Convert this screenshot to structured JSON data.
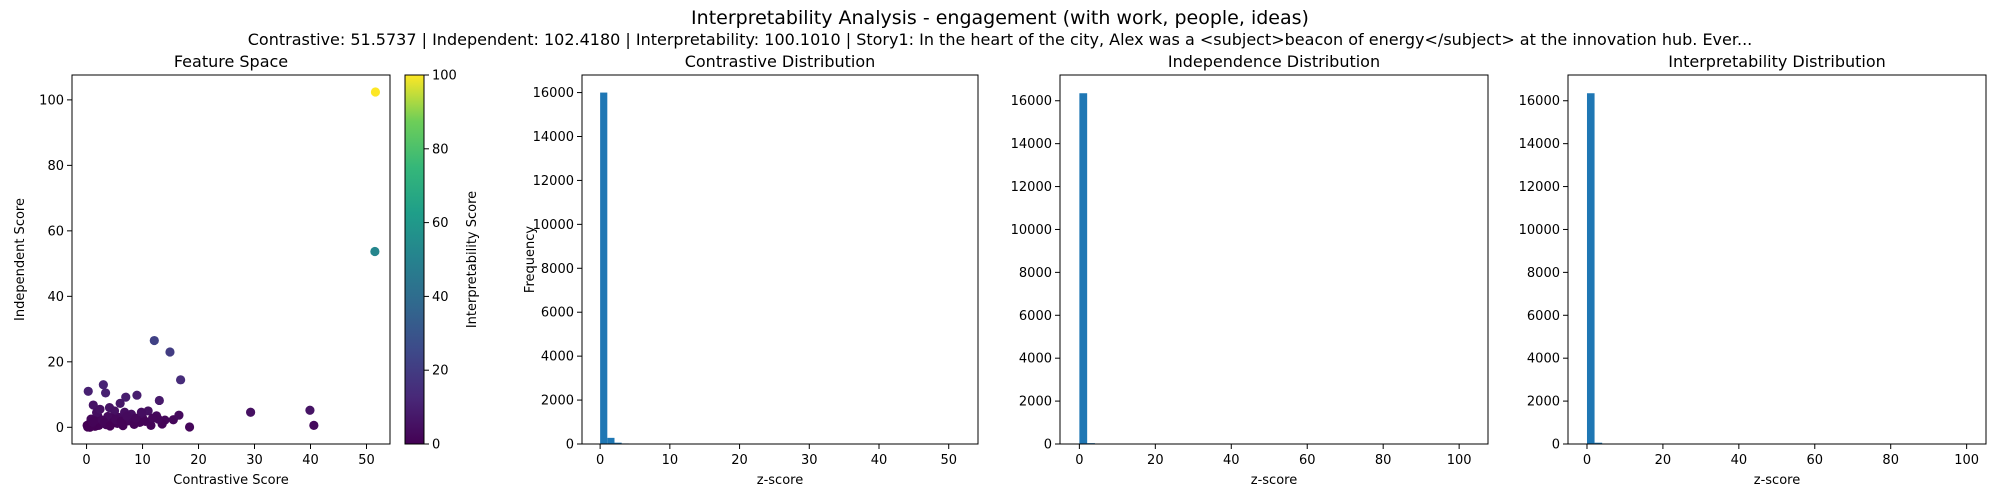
{
  "figure": {
    "title": "Interpretability Analysis - engagement (with work, people, ideas)",
    "subtitle": "Contrastive: 51.5737 | Independent: 102.4180 | Interpretability: 100.1010 | Story1: In the heart of the city, Alex was a <subject>beacon of energy</subject> at the innovation hub. Ever..."
  },
  "chart_data": [
    {
      "type": "scatter",
      "title": "Feature Space",
      "xlabel": "Contrastive Score",
      "ylabel": "Independent Score",
      "xlim": [
        -2.6,
        54.2
      ],
      "ylim": [
        -5.1,
        107.6
      ],
      "xticks": [
        0,
        10,
        20,
        30,
        40,
        50
      ],
      "yticks": [
        0,
        20,
        40,
        60,
        80,
        100
      ],
      "colormap": "viridis",
      "colorbar": {
        "label": "Interpretability Score",
        "range": [
          0,
          100
        ],
        "ticks": [
          0,
          20,
          40,
          60,
          80,
          100
        ]
      },
      "points": [
        [
          51.6,
          102.4,
          100
        ],
        [
          51.5,
          53.7,
          52
        ],
        [
          12.1,
          26.5,
          22
        ],
        [
          14.9,
          23.0,
          20
        ],
        [
          16.8,
          14.5,
          14
        ],
        [
          39.9,
          5.2,
          6
        ],
        [
          40.6,
          0.6,
          3
        ],
        [
          29.3,
          4.6,
          5
        ],
        [
          18.4,
          0.1,
          2
        ],
        [
          13.0,
          8.2,
          8
        ],
        [
          0.3,
          11.0,
          10
        ],
        [
          3.0,
          13.0,
          11
        ],
        [
          3.4,
          10.5,
          10
        ],
        [
          1.2,
          6.8,
          6
        ],
        [
          4.1,
          6.0,
          6
        ],
        [
          7.0,
          9.2,
          9
        ],
        [
          9.0,
          9.8,
          9
        ],
        [
          6.0,
          7.3,
          7
        ],
        [
          5.0,
          5.0,
          5
        ],
        [
          2.0,
          3.5,
          3
        ],
        [
          8.0,
          4.0,
          4
        ],
        [
          10.0,
          3.0,
          3
        ],
        [
          11.0,
          5.0,
          5
        ],
        [
          12.5,
          3.5,
          3
        ],
        [
          14.0,
          2.2,
          2
        ],
        [
          15.5,
          2.3,
          2
        ],
        [
          16.5,
          3.7,
          3
        ],
        [
          13.5,
          1.0,
          1
        ],
        [
          9.5,
          1.5,
          1
        ],
        [
          7.5,
          2.0,
          2
        ],
        [
          6.5,
          0.5,
          1
        ],
        [
          5.5,
          1.2,
          1
        ],
        [
          4.5,
          2.8,
          2
        ],
        [
          3.5,
          0.8,
          1
        ],
        [
          2.5,
          1.8,
          1
        ],
        [
          1.5,
          0.3,
          0
        ],
        [
          0.5,
          1.0,
          1
        ],
        [
          0.2,
          0.1,
          0
        ],
        [
          0.8,
          2.5,
          2
        ],
        [
          1.8,
          4.5,
          4
        ],
        [
          2.2,
          0.6,
          0
        ],
        [
          3.8,
          3.3,
          3
        ],
        [
          4.8,
          1.6,
          1
        ],
        [
          5.8,
          3.0,
          3
        ],
        [
          6.8,
          4.6,
          4
        ],
        [
          8.5,
          0.9,
          1
        ],
        [
          10.5,
          1.8,
          1
        ],
        [
          11.5,
          0.6,
          1
        ],
        [
          12.8,
          2.5,
          2
        ],
        [
          0.1,
          0.6,
          0
        ],
        [
          0.4,
          0.3,
          0
        ],
        [
          0.6,
          0.0,
          0
        ],
        [
          0.9,
          0.4,
          0
        ],
        [
          1.1,
          1.5,
          1
        ],
        [
          1.4,
          2.0,
          1
        ],
        [
          2.8,
          2.2,
          2
        ],
        [
          3.2,
          1.4,
          1
        ],
        [
          4.2,
          0.4,
          0
        ],
        [
          5.2,
          2.4,
          2
        ],
        [
          6.2,
          1.8,
          1
        ],
        [
          7.2,
          3.4,
          3
        ],
        [
          8.8,
          2.8,
          2
        ],
        [
          9.8,
          4.6,
          4
        ],
        [
          11.8,
          2.8,
          2
        ],
        [
          2.4,
          5.5,
          5
        ]
      ]
    },
    {
      "type": "bar",
      "title": "Contrastive Distribution",
      "xlabel": "z-score",
      "ylabel": "Frequency",
      "xlim": [
        -2.6,
        54.2
      ],
      "ylim": [
        0,
        16800
      ],
      "xticks": [
        0,
        10,
        20,
        30,
        40,
        50
      ],
      "yticks": [
        0,
        2000,
        4000,
        6000,
        8000,
        10000,
        12000,
        14000,
        16000
      ],
      "bin_start": 0,
      "bin_width": 1.03,
      "values": [
        16000,
        280,
        60,
        25,
        10,
        5,
        3,
        2,
        1
      ]
    },
    {
      "type": "bar",
      "title": "Independence Distribution",
      "xlabel": "z-score",
      "ylabel": "",
      "xlim": [
        -5.1,
        107.6
      ],
      "ylim": [
        0,
        17200
      ],
      "xticks": [
        0,
        20,
        40,
        60,
        80,
        100
      ],
      "yticks": [
        0,
        2000,
        4000,
        6000,
        8000,
        10000,
        12000,
        14000,
        16000
      ],
      "bin_start": 0,
      "bin_width": 2.05,
      "values": [
        16350,
        40,
        10,
        4,
        2
      ]
    },
    {
      "type": "bar",
      "title": "Interpretability Distribution",
      "xlabel": "z-score",
      "ylabel": "",
      "xlim": [
        -5.0,
        105.1
      ],
      "ylim": [
        0,
        17200
      ],
      "xticks": [
        0,
        20,
        40,
        60,
        80,
        100
      ],
      "yticks": [
        0,
        2000,
        4000,
        6000,
        8000,
        10000,
        12000,
        14000,
        16000
      ],
      "bin_start": 0,
      "bin_width": 2.0,
      "values": [
        16350,
        60,
        15,
        5,
        2
      ]
    }
  ],
  "colors": {
    "bar": "#1f77b4",
    "axis": "#000000"
  }
}
